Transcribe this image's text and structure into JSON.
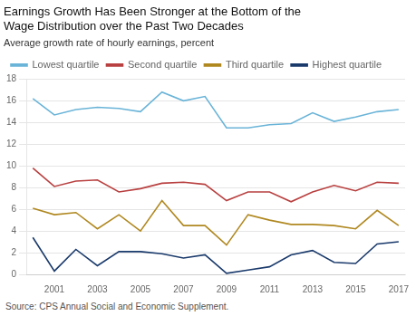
{
  "chart_data": {
    "type": "line",
    "title": [
      "Earnings Growth Has Been Stronger at the Bottom of the",
      "Wage Distribution over the Past Two Decades"
    ],
    "ylabel": "Average growth rate of hourly earnings, percent",
    "source": "Source: CPS Annual Social and Economic Supplement.",
    "x": [
      2000,
      2001,
      2002,
      2003,
      2004,
      2005,
      2006,
      2007,
      2008,
      2009,
      2010,
      2011,
      2012,
      2013,
      2014,
      2015,
      2016,
      2017
    ],
    "series": [
      {
        "name": "Lowest quartile",
        "color": "#6ab4d8",
        "values": [
          16.2,
          14.7,
          15.2,
          15.4,
          15.3,
          15.0,
          16.8,
          16.0,
          16.4,
          13.5,
          13.5,
          13.8,
          13.9,
          14.9,
          14.1,
          14.5,
          15.0,
          15.2
        ]
      },
      {
        "name": "Second quartile",
        "color": "#b94040",
        "values": [
          9.8,
          8.1,
          8.6,
          8.7,
          7.6,
          7.9,
          8.4,
          8.5,
          8.3,
          6.8,
          7.6,
          7.6,
          6.7,
          7.6,
          8.2,
          7.7,
          8.5,
          8.4
        ]
      },
      {
        "name": "Third quartile",
        "color": "#b08820",
        "values": [
          6.1,
          5.5,
          5.7,
          4.2,
          5.5,
          4.0,
          6.8,
          4.5,
          4.5,
          2.7,
          5.5,
          5.0,
          4.6,
          4.6,
          4.5,
          4.2,
          5.9,
          4.5
        ]
      },
      {
        "name": "Highest quartile",
        "color": "#1a3a6b",
        "values": [
          3.4,
          0.3,
          2.3,
          0.8,
          2.1,
          2.1,
          1.9,
          1.5,
          1.8,
          0.1,
          0.4,
          0.7,
          1.8,
          2.2,
          1.1,
          1.0,
          2.8,
          3.0
        ]
      }
    ],
    "xlim": [
      1999.7,
      2017.3
    ],
    "xticks": [
      2001,
      2003,
      2005,
      2007,
      2009,
      2011,
      2013,
      2015,
      2017
    ],
    "ylim": [
      0,
      18
    ],
    "yticks": [
      0,
      2,
      4,
      6,
      8,
      10,
      12,
      14,
      16,
      18
    ],
    "grid": "y",
    "legend": "upper left",
    "marker": "none"
  }
}
